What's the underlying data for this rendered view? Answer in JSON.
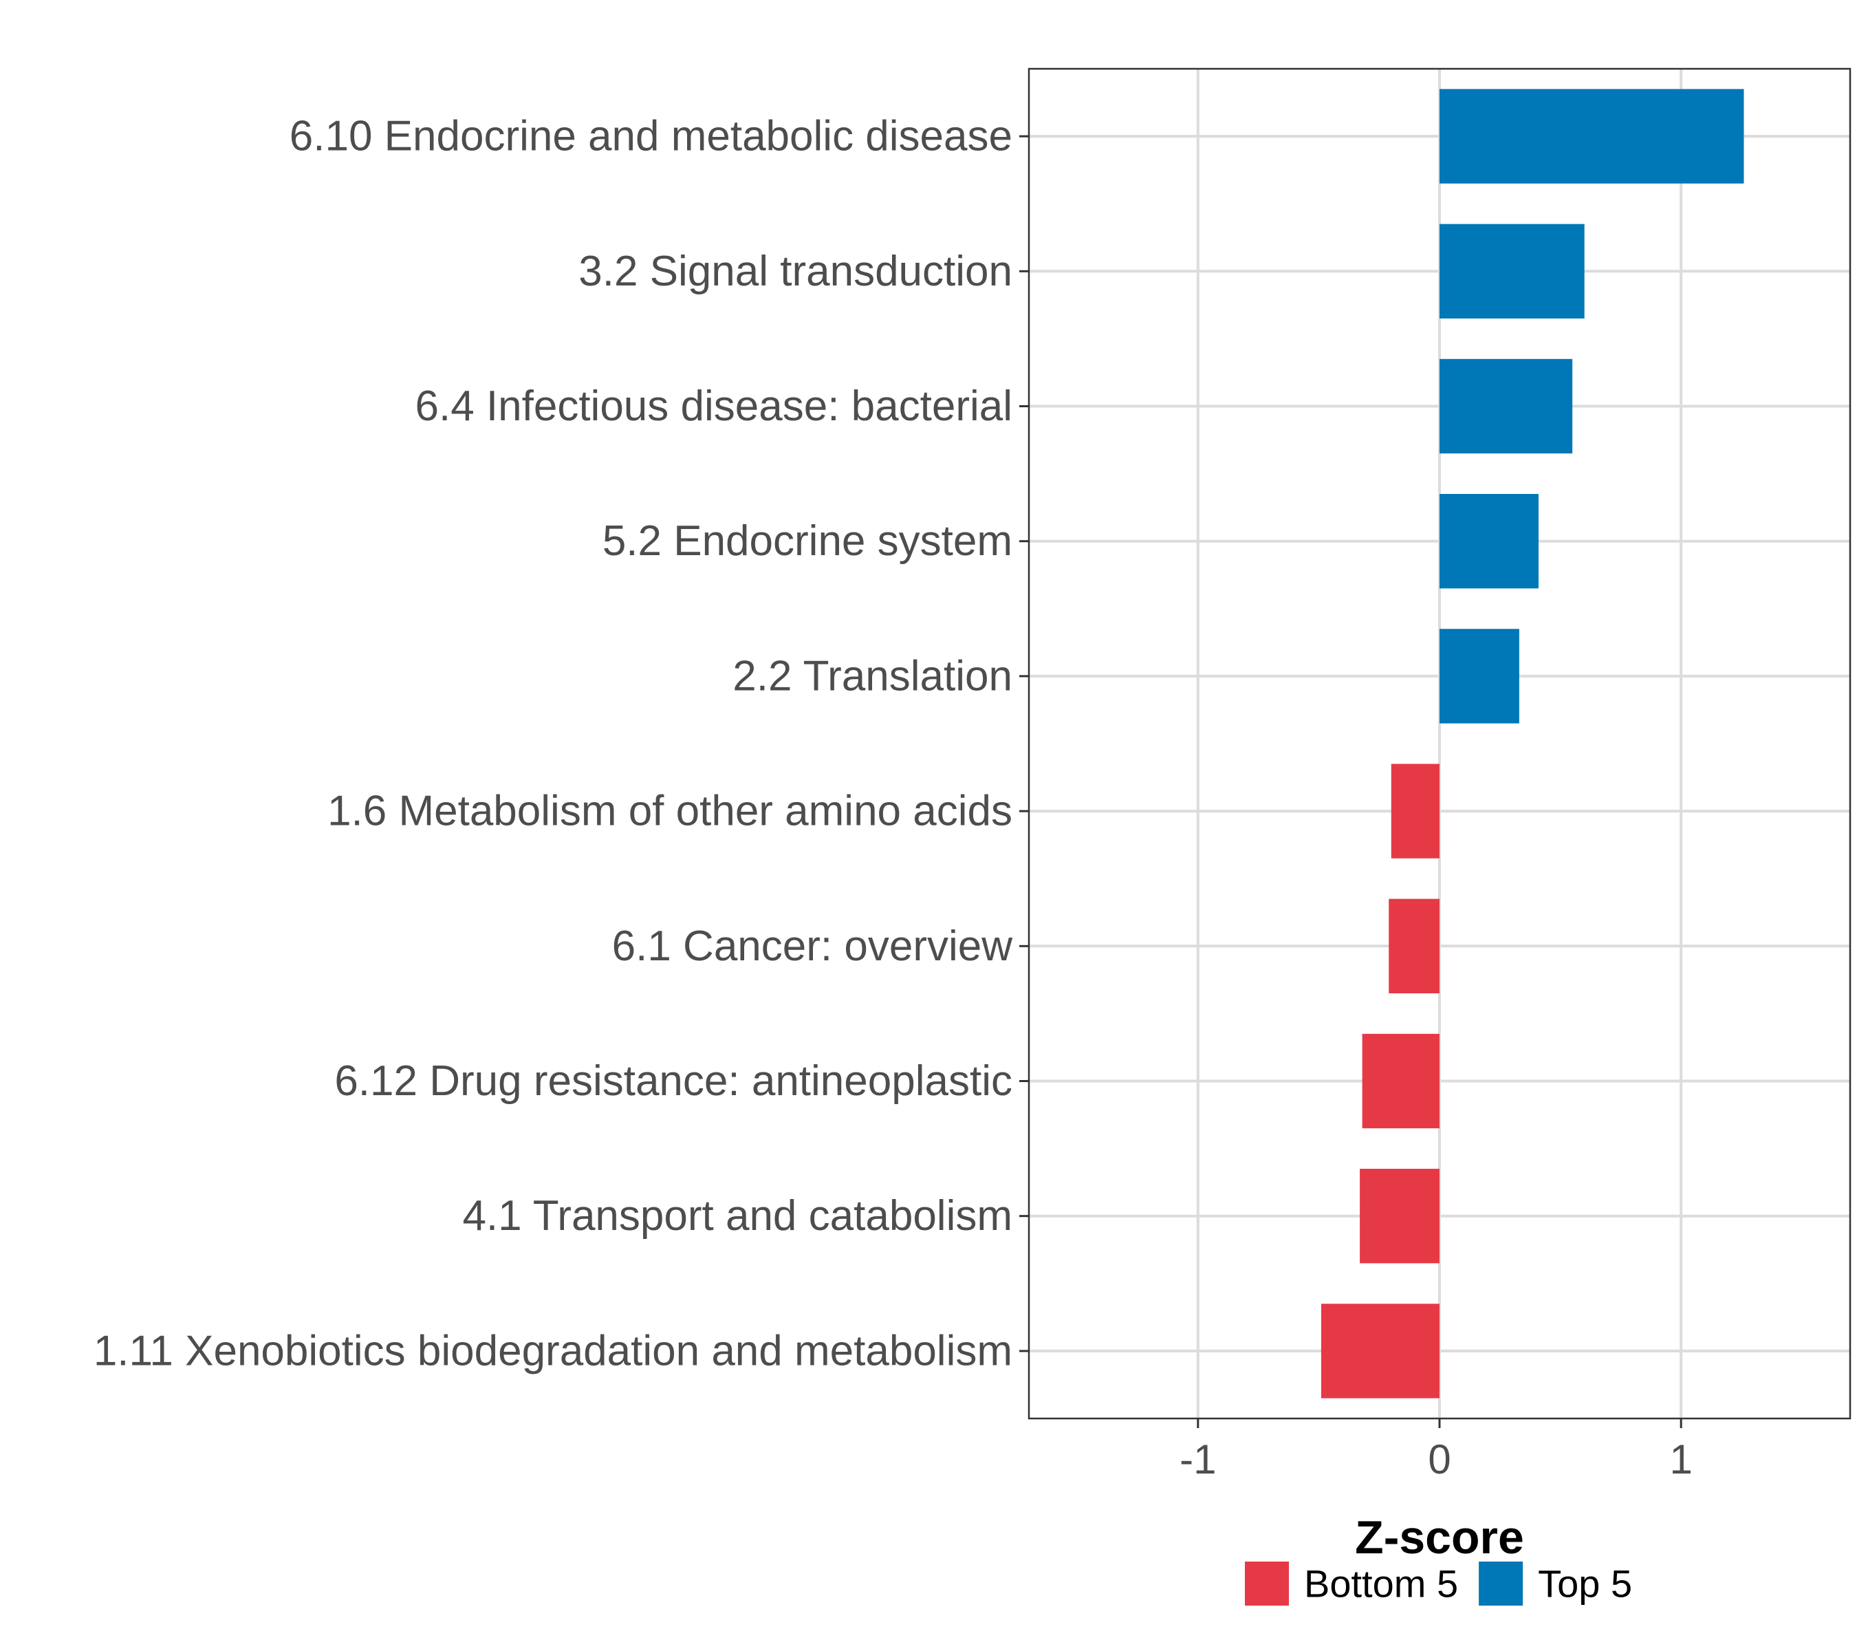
{
  "chart_data": {
    "type": "bar",
    "orientation": "horizontal",
    "categories": [
      "6.10 Endocrine and metabolic disease",
      "3.2 Signal transduction",
      "6.4 Infectious disease: bacterial",
      "5.2 Endocrine system",
      "2.2 Translation",
      "1.6 Metabolism of other amino acids",
      "6.1 Cancer: overview",
      "6.12 Drug resistance: antineoplastic",
      "4.1 Transport and catabolism",
      "1.11 Xenobiotics biodegradation and metabolism"
    ],
    "values": [
      1.26,
      0.6,
      0.55,
      0.41,
      0.33,
      -0.2,
      -0.21,
      -0.32,
      -0.33,
      -0.49
    ],
    "groups": [
      "Top 5",
      "Top 5",
      "Top 5",
      "Top 5",
      "Top 5",
      "Bottom 5",
      "Bottom 5",
      "Bottom 5",
      "Bottom 5",
      "Bottom 5"
    ],
    "title": "",
    "xlabel": "Z-score",
    "ylabel": "",
    "xlim": [
      -1.7,
      1.7
    ],
    "xticks": [
      -1,
      0,
      1
    ],
    "xtick_labels": [
      "-1",
      "0",
      "1"
    ],
    "grid": true,
    "legend": {
      "position": "bottom",
      "entries": [
        {
          "label": "Bottom 5",
          "color": "#E63946"
        },
        {
          "label": "Top 5",
          "color": "#0077B6"
        }
      ]
    },
    "colors": {
      "Top 5": "#0077B6",
      "Bottom 5": "#E63946"
    }
  }
}
